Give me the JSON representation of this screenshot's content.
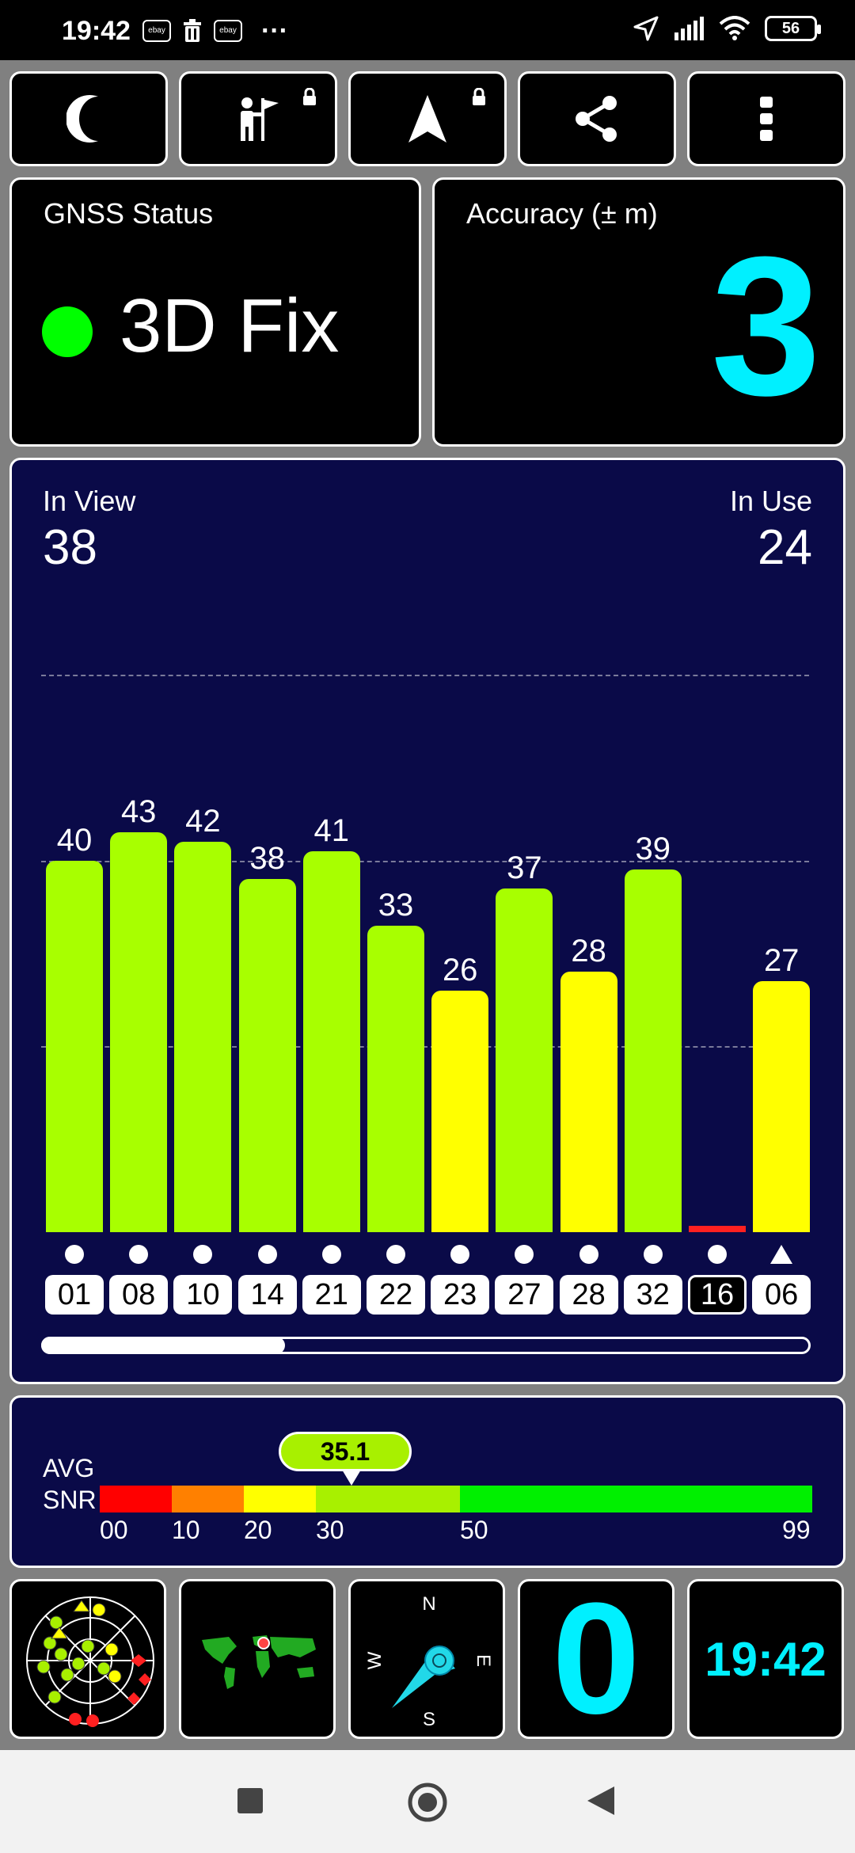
{
  "status_bar": {
    "time": "19:42",
    "ebay_label": "ebay",
    "battery": "56",
    "icons": [
      "ebay-icon",
      "trash-icon",
      "ebay-icon",
      "more-dots-icon",
      "location-arrow-icon",
      "signal-icon",
      "wifi-icon",
      "battery-icon"
    ]
  },
  "toolbar": {
    "buttons": [
      {
        "icon": "moon-icon"
      },
      {
        "icon": "person-flag-icon",
        "locked": true
      },
      {
        "icon": "navigation-arrow-icon",
        "locked": true
      },
      {
        "icon": "share-icon"
      },
      {
        "icon": "more-vert-icon"
      }
    ]
  },
  "gnss": {
    "label": "GNSS Status",
    "fix": "3D Fix",
    "fix_color": "#00ff00"
  },
  "accuracy": {
    "label": "Accuracy (± m)",
    "value": "3",
    "color": "#00f0ff"
  },
  "satellites": {
    "in_view_label": "In View",
    "in_view": "38",
    "in_use_label": "In Use",
    "in_use": "24"
  },
  "chart_data": {
    "type": "bar",
    "categories": [
      "01",
      "08",
      "10",
      "14",
      "21",
      "22",
      "23",
      "27",
      "28",
      "32",
      "16",
      "06"
    ],
    "values": [
      40,
      43,
      42,
      38,
      41,
      33,
      26,
      37,
      28,
      39,
      0,
      27
    ],
    "value_labels": [
      "40",
      "43",
      "42",
      "38",
      "41",
      "33",
      "26",
      "37",
      "28",
      "39",
      "",
      "27"
    ],
    "colors": [
      "#a8ff00",
      "#a8ff00",
      "#a8ff00",
      "#a8ff00",
      "#a8ff00",
      "#a8ff00",
      "#ffff00",
      "#a8ff00",
      "#ffff00",
      "#a8ff00",
      "#ff2020",
      "#ffff00"
    ],
    "markers": [
      "dot",
      "dot",
      "dot",
      "dot",
      "dot",
      "dot",
      "dot",
      "dot",
      "dot",
      "dot",
      "dot",
      "triangle"
    ],
    "outlined": [
      false,
      false,
      false,
      false,
      false,
      false,
      false,
      false,
      false,
      false,
      true,
      false
    ],
    "ylim": [
      0,
      60
    ],
    "gridlines": [
      20,
      40,
      60
    ],
    "scroll_position": 0.3
  },
  "avg_snr": {
    "label_line1": "AVG",
    "label_line2": "SNR",
    "value": "35.1",
    "ticks": [
      "00",
      "10",
      "20",
      "30",
      "50",
      "99"
    ],
    "segments": [
      {
        "from": 0,
        "to": 10,
        "color": "#ff0000"
      },
      {
        "from": 10,
        "to": 20,
        "color": "#ff8000"
      },
      {
        "from": 20,
        "to": 30,
        "color": "#ffff00"
      },
      {
        "from": 30,
        "to": 50,
        "color": "#a8f000"
      },
      {
        "from": 50,
        "to": 99,
        "color": "#00f000"
      }
    ]
  },
  "bottom_tiles": {
    "tiles": [
      {
        "icon": "sky-plot-icon"
      },
      {
        "icon": "world-map-icon"
      },
      {
        "icon": "compass-icon",
        "n": "N",
        "e": "E",
        "s": "S",
        "w": "W"
      },
      {
        "icon": "speed-value",
        "value": "0",
        "color": "#00f0ff"
      },
      {
        "icon": "clock-value",
        "value": "19:42",
        "color": "#00f0ff"
      }
    ]
  },
  "nav": {
    "buttons": [
      "recents-square-icon",
      "home-circle-icon",
      "back-triangle-icon"
    ]
  }
}
